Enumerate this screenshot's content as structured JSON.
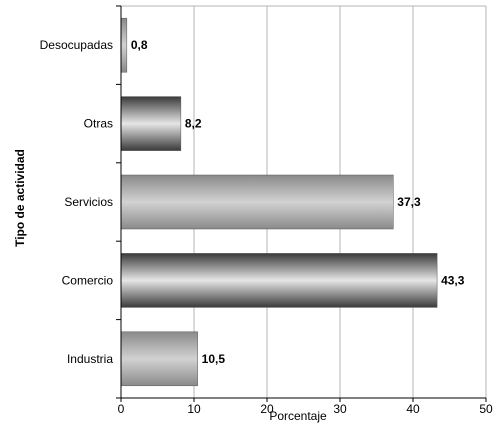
{
  "chart_data": {
    "type": "bar",
    "orientation": "horizontal",
    "title": "",
    "xlabel": "Porcentaje",
    "ylabel": "Tipo de actividad",
    "categories": [
      "Desocupadas",
      "Otras",
      "Servicios",
      "Comercio",
      "Industria"
    ],
    "values": [
      0.8,
      8.2,
      37.3,
      43.3,
      10.5
    ],
    "value_labels": [
      "0,8",
      "8,2",
      "37,3",
      "43,3",
      "10,5"
    ],
    "xlim": [
      0,
      50
    ],
    "xticks": [
      0,
      10,
      20,
      30,
      40,
      50
    ],
    "grid": "vertical",
    "bar_style": "gradient-gray",
    "colors": {
      "grid": "#b4b4b4",
      "bar_dark": "#404040",
      "bar_light": "#e0e0e0",
      "bar_light_alt": "#c4c4c4",
      "axis": "#000000"
    }
  }
}
